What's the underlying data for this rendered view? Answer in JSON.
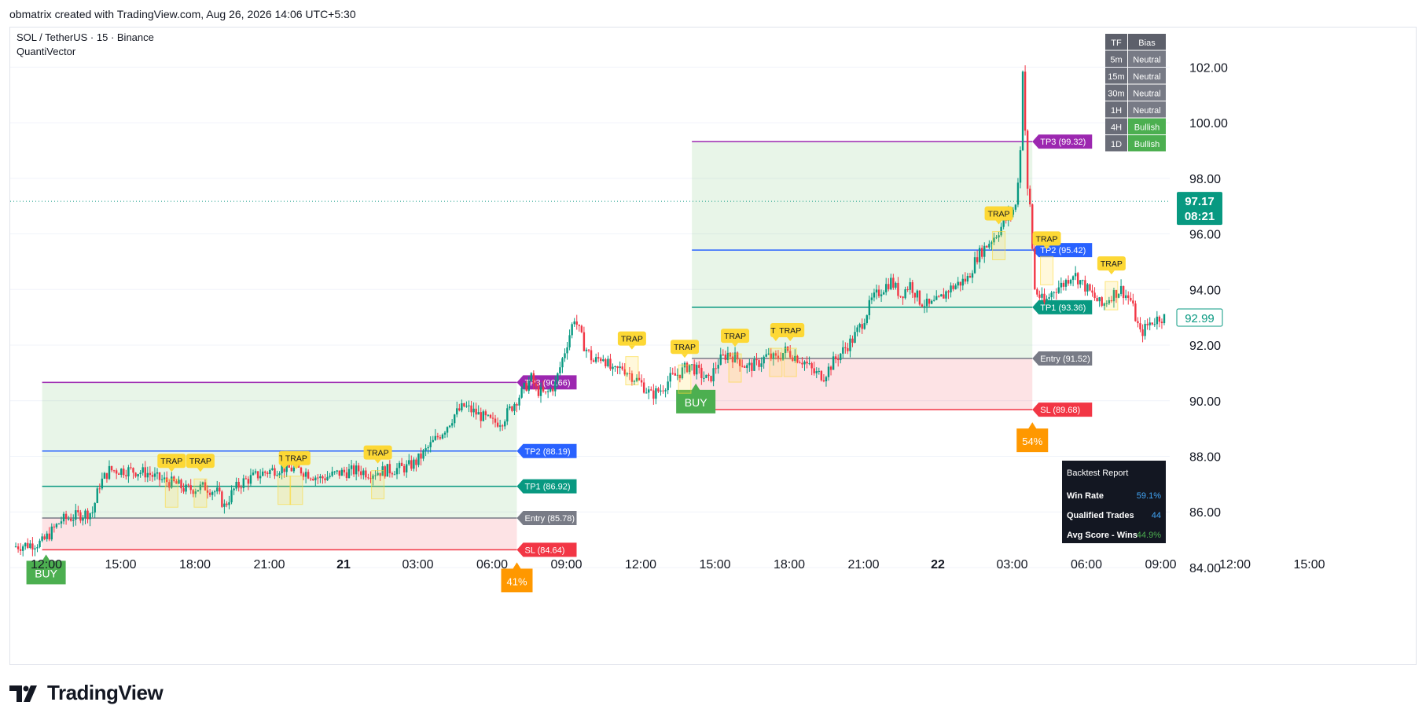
{
  "header": {
    "attribution": "obmatrix created with TradingView.com, Aug 26, 2026 14:06 UTC+5:30"
  },
  "chart": {
    "symbol_line": "SOL / TetherUS · 15 · Binance",
    "indicator_name": "QuantiVector"
  },
  "brand": {
    "logo_text": "TradingView",
    "logo_icon": "tradingview-logo-icon"
  },
  "colors": {
    "up": "#089981",
    "down": "#f23645",
    "buy": "#4caf50",
    "trap": "#fdd835",
    "tp3": "#9c27b0",
    "tp2": "#2962ff",
    "tp1": "#089981",
    "entry": "#787b86",
    "sl": "#f23645",
    "score": "#ff9800"
  },
  "chart_data": {
    "type": "candlestick",
    "ylim": [
      82.5,
      103
    ],
    "y_ticks": [
      84,
      86,
      88,
      90,
      92,
      94,
      96,
      98,
      100,
      102
    ],
    "y_tick_labels": [
      "84.00",
      "86.00",
      "88.00",
      "90.00",
      "92.00",
      "94.00",
      "96.00",
      "98.00",
      "100.00",
      "102.00"
    ],
    "x_ticks": [
      {
        "label": "12:00",
        "bold": false
      },
      {
        "label": "15:00",
        "bold": false
      },
      {
        "label": "18:00",
        "bold": false
      },
      {
        "label": "21:00",
        "bold": false
      },
      {
        "label": "21",
        "bold": true
      },
      {
        "label": "03:00",
        "bold": false
      },
      {
        "label": "06:00",
        "bold": false
      },
      {
        "label": "09:00",
        "bold": false
      },
      {
        "label": "12:00",
        "bold": false
      },
      {
        "label": "15:00",
        "bold": false
      },
      {
        "label": "18:00",
        "bold": false
      },
      {
        "label": "21:00",
        "bold": false
      },
      {
        "label": "22",
        "bold": true
      },
      {
        "label": "03:00",
        "bold": false
      },
      {
        "label": "06:00",
        "bold": false
      },
      {
        "label": "09:00",
        "bold": false
      },
      {
        "label": "12:00",
        "bold": false
      },
      {
        "label": "15:00",
        "bold": false
      }
    ],
    "price_path": [
      [
        0,
        84.75
      ],
      [
        8,
        84.85
      ],
      [
        12,
        84.9
      ],
      [
        20,
        85.7
      ],
      [
        28,
        85.9
      ],
      [
        33,
        86.0
      ],
      [
        36,
        87.0
      ],
      [
        40,
        87.5
      ],
      [
        48,
        87.5
      ],
      [
        56,
        87.4
      ],
      [
        60,
        87.2
      ],
      [
        68,
        87.0
      ],
      [
        72,
        86.8
      ],
      [
        80,
        86.9
      ],
      [
        85,
        86.7
      ],
      [
        88,
        86.2
      ],
      [
        92,
        86.8
      ],
      [
        96,
        87.1
      ],
      [
        104,
        87.4
      ],
      [
        112,
        87.6
      ],
      [
        120,
        87.5
      ],
      [
        128,
        87.2
      ],
      [
        136,
        87.4
      ],
      [
        144,
        87.5
      ],
      [
        148,
        87.4
      ],
      [
        156,
        87.5
      ],
      [
        164,
        87.6
      ],
      [
        168,
        87.8
      ],
      [
        172,
        88.2
      ],
      [
        176,
        88.6
      ],
      [
        180,
        89.0
      ],
      [
        184,
        89.5
      ],
      [
        188,
        89.8
      ],
      [
        192,
        89.6
      ],
      [
        196,
        89.4
      ],
      [
        200,
        89.2
      ],
      [
        204,
        89.3
      ],
      [
        208,
        89.8
      ],
      [
        212,
        90.3
      ],
      [
        216,
        90.8
      ],
      [
        218,
        90.4
      ],
      [
        222,
        90.2
      ],
      [
        226,
        90.6
      ],
      [
        230,
        91.8
      ],
      [
        234,
        93.0
      ],
      [
        238,
        92.0
      ],
      [
        242,
        91.4
      ],
      [
        246,
        91.6
      ],
      [
        250,
        91.0
      ],
      [
        254,
        91.2
      ],
      [
        258,
        90.9
      ],
      [
        262,
        90.6
      ],
      [
        266,
        90.2
      ],
      [
        270,
        90.4
      ],
      [
        274,
        90.8
      ],
      [
        278,
        91.0
      ],
      [
        282,
        91.3
      ],
      [
        286,
        91.0
      ],
      [
        290,
        90.7
      ],
      [
        294,
        91.4
      ],
      [
        298,
        91.7
      ],
      [
        302,
        91.5
      ],
      [
        306,
        91.2
      ],
      [
        310,
        91.3
      ],
      [
        314,
        91.6
      ],
      [
        318,
        91.5
      ],
      [
        322,
        91.8
      ],
      [
        326,
        91.6
      ],
      [
        330,
        91.4
      ],
      [
        334,
        91.0
      ],
      [
        338,
        90.9
      ],
      [
        342,
        91.4
      ],
      [
        346,
        91.8
      ],
      [
        350,
        92.2
      ],
      [
        354,
        92.8
      ],
      [
        358,
        93.6
      ],
      [
        362,
        94.0
      ],
      [
        366,
        94.3
      ],
      [
        370,
        93.8
      ],
      [
        374,
        94.2
      ],
      [
        378,
        93.6
      ],
      [
        382,
        93.4
      ],
      [
        386,
        93.6
      ],
      [
        390,
        94.0
      ],
      [
        394,
        94.2
      ],
      [
        398,
        94.4
      ],
      [
        402,
        95.2
      ],
      [
        406,
        95.6
      ],
      [
        410,
        96.0
      ],
      [
        414,
        96.5
      ],
      [
        418,
        97.0
      ],
      [
        420,
        99.0
      ],
      [
        421,
        102.0
      ],
      [
        423,
        97.5
      ],
      [
        424,
        97.0
      ],
      [
        426,
        94.0
      ],
      [
        430,
        93.5
      ],
      [
        434,
        94.0
      ],
      [
        438,
        94.2
      ],
      [
        442,
        94.6
      ],
      [
        446,
        94.2
      ],
      [
        450,
        93.8
      ],
      [
        454,
        93.4
      ],
      [
        458,
        93.8
      ],
      [
        462,
        94.0
      ],
      [
        466,
        93.6
      ],
      [
        470,
        92.4
      ],
      [
        474,
        92.8
      ],
      [
        478,
        93.0
      ],
      [
        480,
        92.99
      ]
    ],
    "current_price_label": "97.17",
    "countdown_label": "08:21",
    "last_price_label": "92.99",
    "trade_setups": [
      {
        "start": 12,
        "end": 210,
        "buy_price": 84.75,
        "tp3": 90.66,
        "tp2": 88.19,
        "tp1": 86.92,
        "entry": 85.78,
        "sl": 84.64,
        "buy_label": "BUY",
        "tp3_label": "TP3 (90.66)",
        "tp2_label": "TP2 (88.19)",
        "tp1_label": "TP1 (86.92)",
        "entry_label": "Entry (85.78)",
        "sl_label": "SL (84.64)",
        "score_label": "41%"
      },
      {
        "start": 283,
        "end": 425,
        "buy_price": 90.9,
        "tp3": 99.32,
        "tp2": 95.42,
        "tp1": 93.36,
        "entry": 91.52,
        "sl": 89.68,
        "buy_label": "BUY",
        "tp3_label": "TP3 (99.32)",
        "tp2_label": "TP2 (95.42)",
        "tp1_label": "TP1 (93.36)",
        "entry_label": "Entry (91.52)",
        "sl_label": "SL (89.68)",
        "score_label": "54%"
      }
    ],
    "trap_labels": [
      {
        "x": 66,
        "price": 87.3,
        "text": "TRAP"
      },
      {
        "x": 78,
        "price": 87.3,
        "text": "TRAP"
      },
      {
        "x": 113,
        "price": 87.4,
        "text": "TP"
      },
      {
        "x": 118,
        "price": 87.4,
        "text": "TRAP"
      },
      {
        "x": 152,
        "price": 87.6,
        "text": "TRAP"
      },
      {
        "x": 258,
        "price": 91.7,
        "text": "TRAP"
      },
      {
        "x": 280,
        "price": 91.4,
        "text": "TRAP"
      },
      {
        "x": 301,
        "price": 91.8,
        "text": "TRAP"
      },
      {
        "x": 318,
        "price": 92.0,
        "text": "TP"
      },
      {
        "x": 324,
        "price": 92.0,
        "text": "TRAP"
      },
      {
        "x": 411,
        "price": 96.2,
        "text": "TRAP"
      },
      {
        "x": 431,
        "price": 95.3,
        "text": "TRAP"
      },
      {
        "x": 458,
        "price": 94.4,
        "text": "TRAP"
      }
    ],
    "bias_table": {
      "headers": [
        "TF",
        "Bias"
      ],
      "rows": [
        [
          "5m",
          "Neutral"
        ],
        [
          "15m",
          "Neutral"
        ],
        [
          "30m",
          "Neutral"
        ],
        [
          "1H",
          "Neutral"
        ],
        [
          "4H",
          "Bullish"
        ],
        [
          "1D",
          "Bullish"
        ]
      ]
    },
    "backtest": {
      "title": "Backtest Report",
      "rows": [
        [
          "Win Rate",
          "59.1%"
        ],
        [
          "Qualified Trades",
          "44"
        ],
        [
          "Avg Score - Wins",
          "44.9%"
        ]
      ]
    }
  }
}
